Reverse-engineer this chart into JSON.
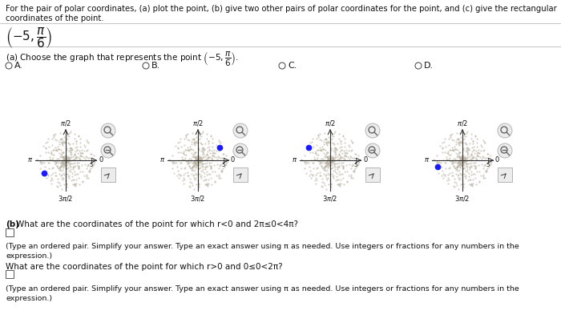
{
  "title_line1": "For the pair of polar coordinates, (a) plot the point, (b) give two other pairs of polar coordinates for the point, and (c) give the rectangular",
  "title_line2": "coordinates of the point.",
  "bg_color": "#f5f0eb",
  "dot_color": "#1a1aff",
  "graphs": [
    {
      "label": "A.",
      "dot_theta_deg": 210
    },
    {
      "label": "B.",
      "dot_theta_deg": 30
    },
    {
      "label": "C.",
      "dot_theta_deg": 150
    },
    {
      "label": "D.",
      "dot_theta_deg": 195
    }
  ],
  "dot_r": 5,
  "max_r": 6,
  "part_b_bold": "(b)",
  "part_b_text": " What are the coordinates of the point for which r<0 and 2π≤0<4π?",
  "part_b2_text": "What are the coordinates of the point for which r>0 and 0≤0<2π?",
  "hint_text": "(Type an ordered pair. Simplify your answer. Type an exact answer using π as needed. Use integers or fractions for any numbers in the",
  "hint_text2": "expression.)",
  "background": "#ffffff",
  "line_color": "#cccccc",
  "axis_color": "#333333"
}
